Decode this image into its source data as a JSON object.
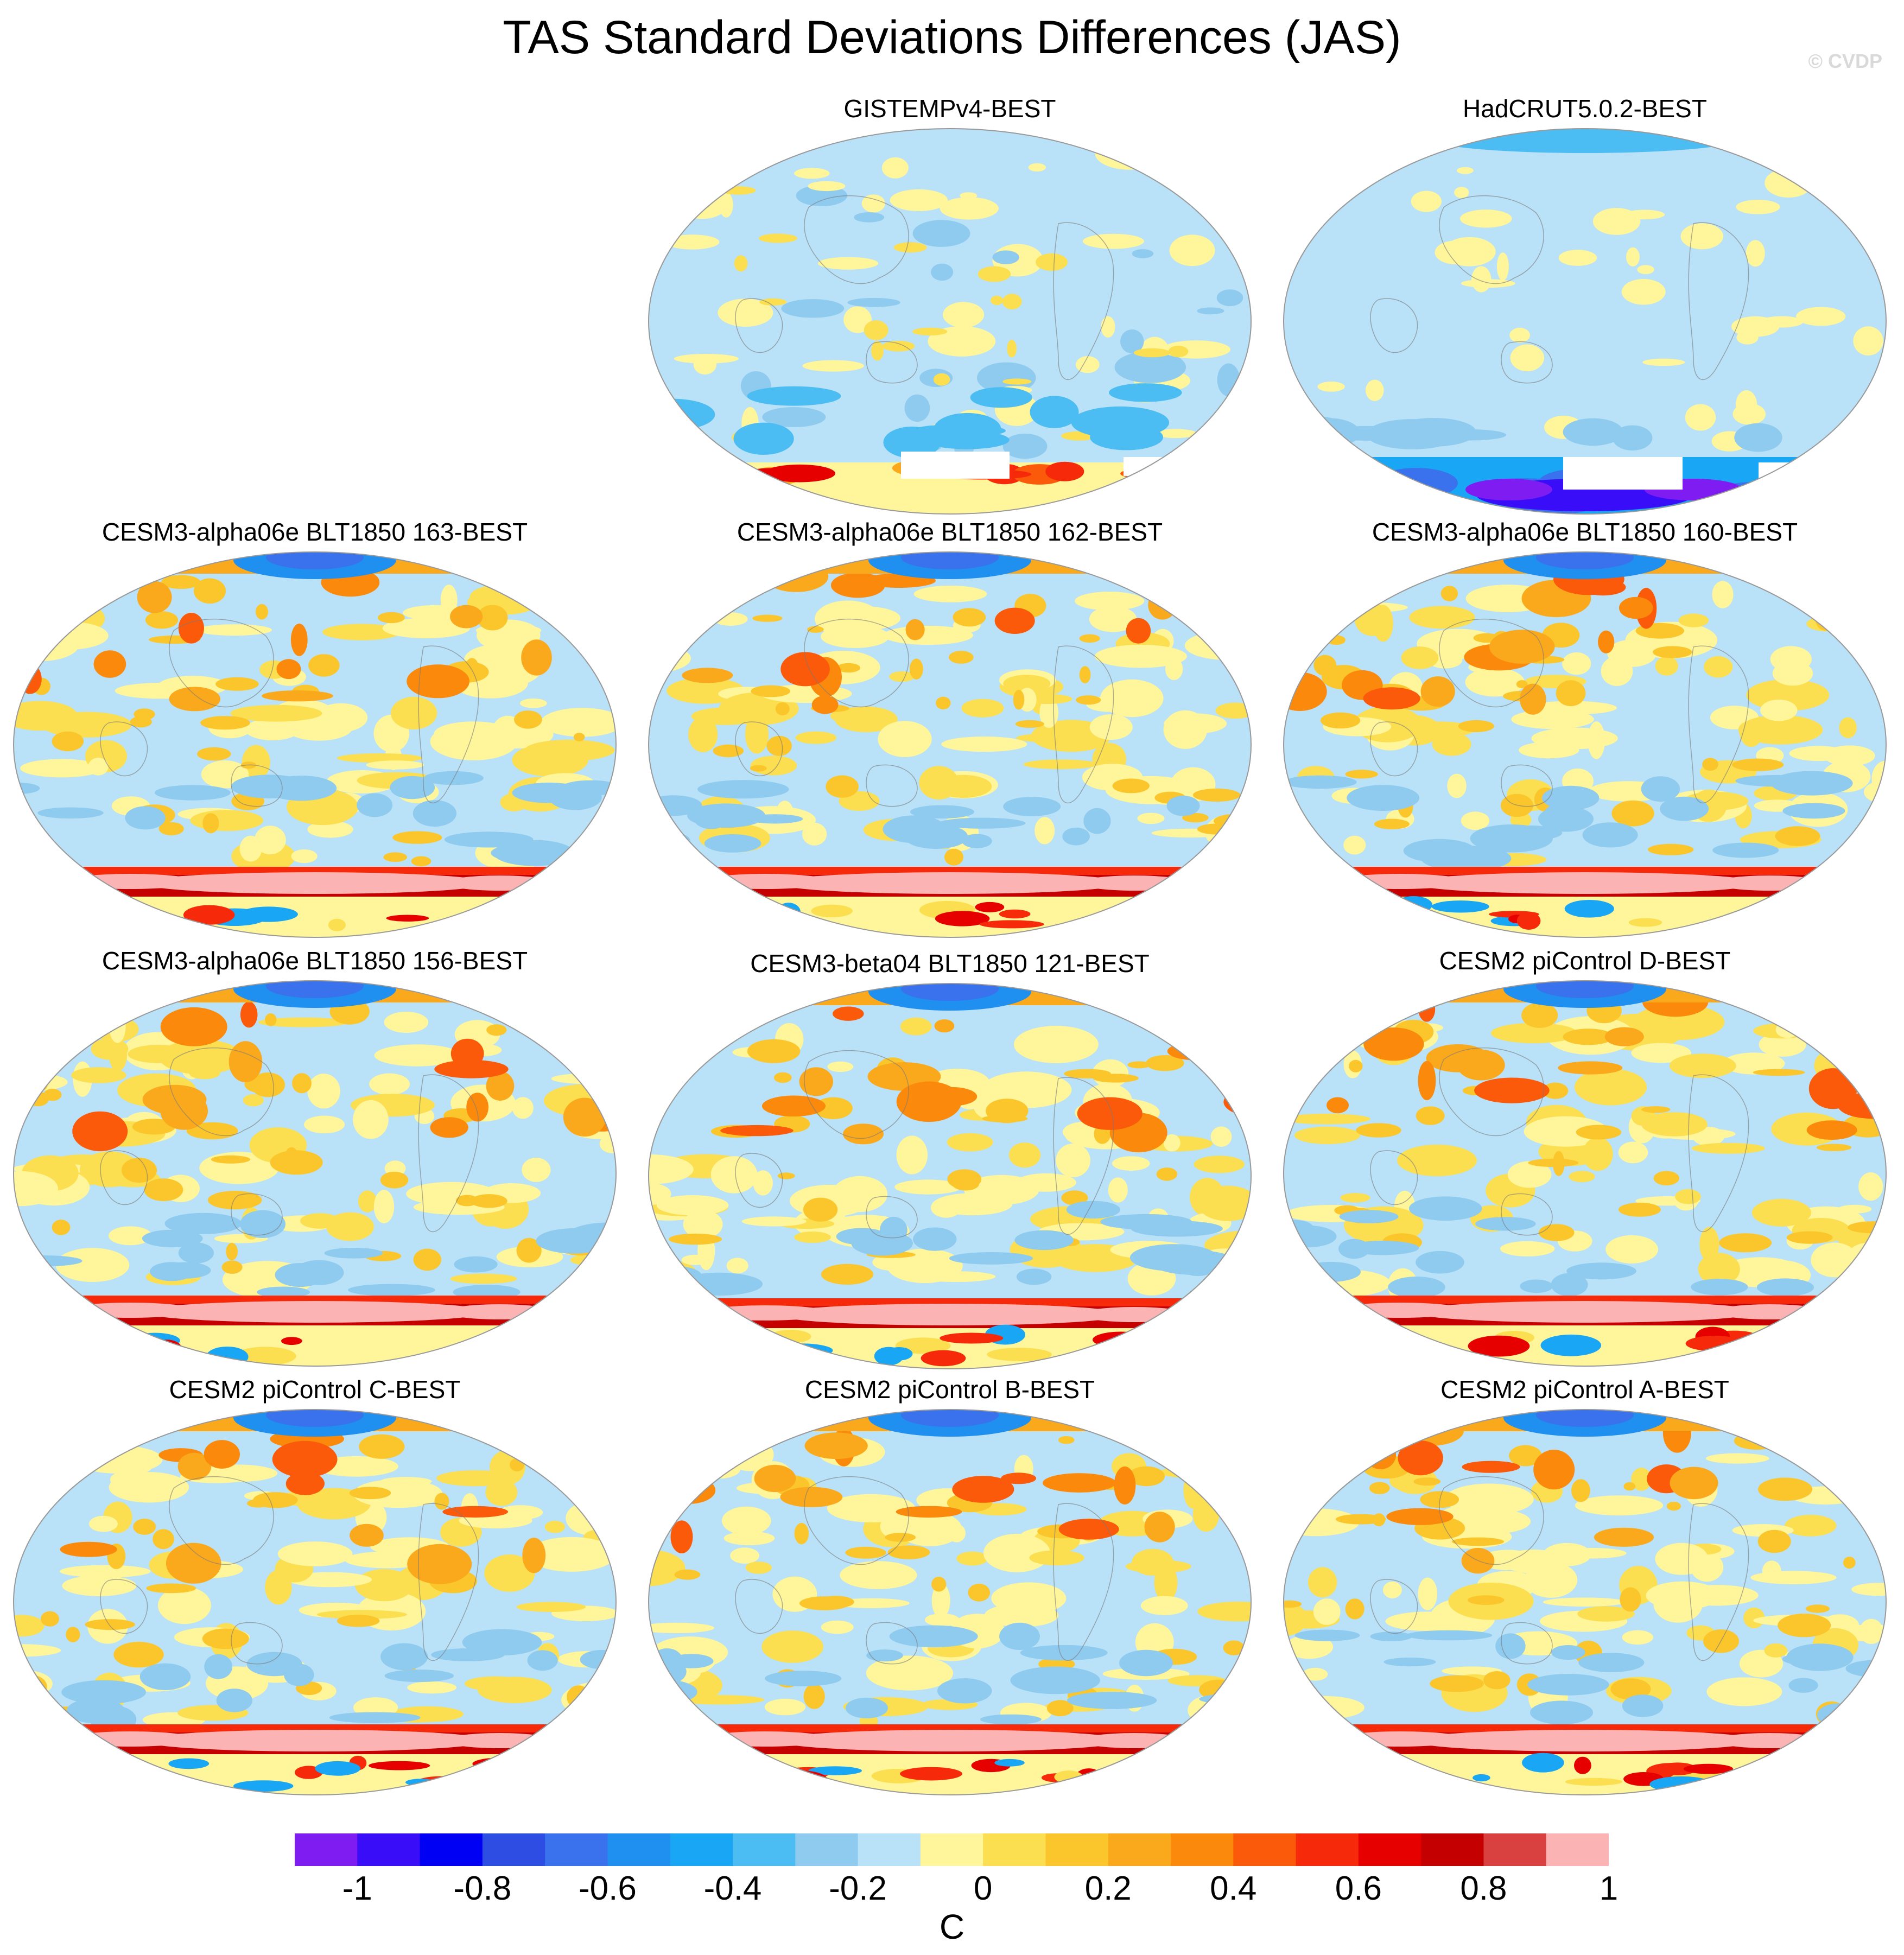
{
  "title": "TAS Standard Deviations Differences (JAS)",
  "copyright": "© CVDP",
  "colorbar": {
    "colors": [
      "#7f1cf2",
      "#3a0df8",
      "#0000f5",
      "#2e4ee3",
      "#3972ec",
      "#1f8ff0",
      "#18a6f5",
      "#4cbdf2",
      "#8fcaef",
      "#b9e1f7",
      "#fff59a",
      "#fbdf50",
      "#fbc62b",
      "#fba91c",
      "#fb8a0c",
      "#fb5a0a",
      "#f62a0a",
      "#e60000",
      "#c40000",
      "#d94040",
      "#fbb3b3"
    ],
    "tick_labels": [
      "-1",
      "-0.8",
      "-0.6",
      "-0.4",
      "-0.2",
      "0",
      "0.2",
      "0.4",
      "0.6",
      "0.8",
      "1"
    ],
    "units": "C"
  },
  "panels": [
    {
      "id": "p1",
      "title": "GISTEMPv4-BEST",
      "scheme": "gistemp"
    },
    {
      "id": "p2",
      "title": "HadCRUT5.0.2-BEST",
      "scheme": "hadcrut"
    },
    {
      "id": "p3",
      "title": "CESM3-alpha06e BLT1850 163-BEST",
      "scheme": "model"
    },
    {
      "id": "p4",
      "title": "CESM3-alpha06e BLT1850 162-BEST",
      "scheme": "model"
    },
    {
      "id": "p5",
      "title": "CESM3-alpha06e BLT1850 160-BEST",
      "scheme": "model"
    },
    {
      "id": "p6",
      "title": "CESM3-alpha06e BLT1850 156-BEST",
      "scheme": "model"
    },
    {
      "id": "p7",
      "title": "CESM3-beta04 BLT1850 121-BEST",
      "scheme": "model"
    },
    {
      "id": "p8",
      "title": "CESM2 piControl D-BEST",
      "scheme": "model"
    },
    {
      "id": "p9",
      "title": "CESM2 piControl C-BEST",
      "scheme": "model"
    },
    {
      "id": "p10",
      "title": "CESM2 piControl B-BEST",
      "scheme": "model"
    },
    {
      "id": "p11",
      "title": "CESM2 piControl A-BEST",
      "scheme": "model"
    }
  ]
}
